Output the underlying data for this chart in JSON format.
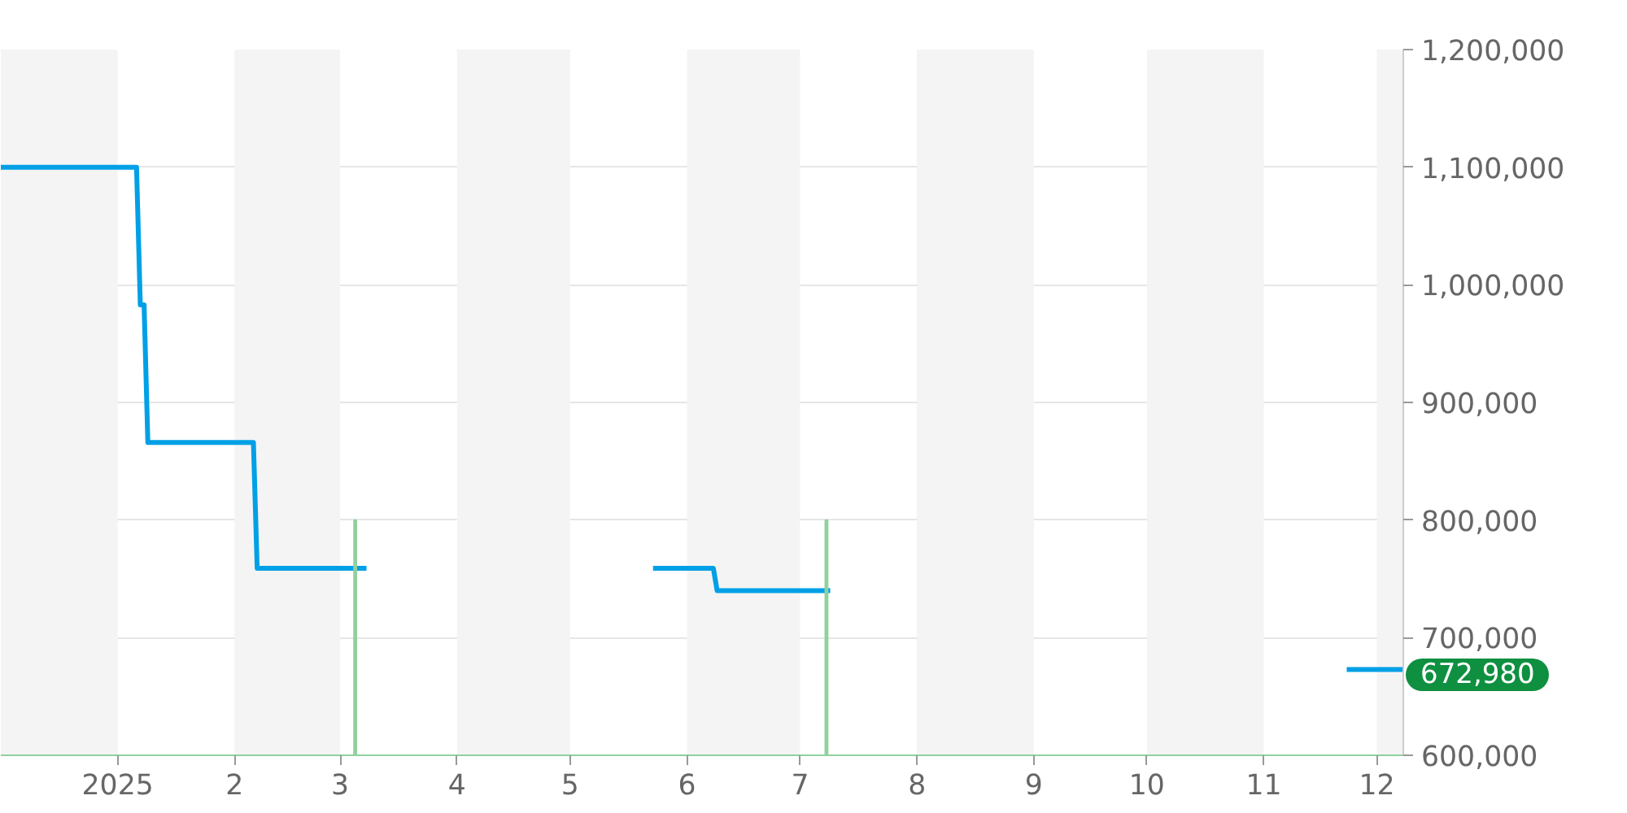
{
  "chart_data": {
    "type": "line",
    "x": [
      "2024-12-01",
      "2025-01-06",
      "2025-01-07",
      "2025-01-08",
      "2025-01-09",
      "2025-02-06",
      "2025-02-07",
      "2025-03-08",
      "2025-03-20",
      "2025-05-23",
      "2025-06-08",
      "2025-06-09",
      "2025-07-09",
      "2025-08-01",
      "2025-11-23",
      "2025-12-08"
    ],
    "series": [
      {
        "color": "#00a0e6",
        "values": [
          1100000,
          1100000,
          983000,
          983000,
          866000,
          866000,
          759000,
          759000,
          null,
          759000,
          759000,
          740000,
          740000,
          null,
          672980,
          672980
        ],
        "value_labels": [
          null,
          null,
          null,
          null,
          null,
          null,
          null,
          null,
          null,
          null,
          null,
          null,
          null,
          null,
          null,
          "672,980"
        ]
      },
      {
        "type": "bar",
        "color": "#8fd19e",
        "x": [
          "2025-03-05",
          "2025-07-08"
        ],
        "base": [
          600000,
          600000
        ],
        "values": [
          200000,
          200000
        ]
      }
    ],
    "xlim": [
      "2024-12-01",
      "2025-12-08"
    ],
    "xticks": [
      {
        "value": "2025-01-01",
        "label": "2025"
      },
      {
        "value": "2025-02-01",
        "label": "2"
      },
      {
        "value": "2025-03-01",
        "label": "3"
      },
      {
        "value": "2025-04-01",
        "label": "4"
      },
      {
        "value": "2025-05-01",
        "label": "5"
      },
      {
        "value": "2025-06-01",
        "label": "6"
      },
      {
        "value": "2025-07-01",
        "label": "7"
      },
      {
        "value": "2025-08-01",
        "label": "8"
      },
      {
        "value": "2025-09-01",
        "label": "9"
      },
      {
        "value": "2025-10-01",
        "label": "10"
      },
      {
        "value": "2025-11-01",
        "label": "11"
      },
      {
        "value": "2025-12-01",
        "label": "12"
      }
    ],
    "ylim": [
      600000,
      1200000
    ],
    "yticks": [
      {
        "value": 600000,
        "label": "600,000"
      },
      {
        "value": 700000,
        "label": "700,000"
      },
      {
        "value": 800000,
        "label": "800,000"
      },
      {
        "value": 900000,
        "label": "900,000"
      },
      {
        "value": 1000000,
        "label": "1,000,000"
      },
      {
        "value": 1100000,
        "label": "1,100,000"
      },
      {
        "value": 1200000,
        "label": "1,200,000"
      }
    ],
    "grid": "y",
    "bands": [
      {
        "axis": "x",
        "from": "2024-12-01",
        "to": "2025-01-01",
        "color": "#f4f4f4"
      },
      {
        "axis": "x",
        "from": "2025-02-01",
        "to": "2025-03-01",
        "color": "#f4f4f4"
      },
      {
        "axis": "x",
        "from": "2025-04-01",
        "to": "2025-05-01",
        "color": "#f4f4f4"
      },
      {
        "axis": "x",
        "from": "2025-06-01",
        "to": "2025-07-01",
        "color": "#f4f4f4"
      },
      {
        "axis": "x",
        "from": "2025-08-01",
        "to": "2025-09-01",
        "color": "#f4f4f4"
      },
      {
        "axis": "x",
        "from": "2025-10-01",
        "to": "2025-11-01",
        "color": "#f4f4f4"
      },
      {
        "axis": "x",
        "from": "2025-12-01",
        "to": "2025-12-08",
        "color": "#f4f4f4"
      }
    ]
  }
}
